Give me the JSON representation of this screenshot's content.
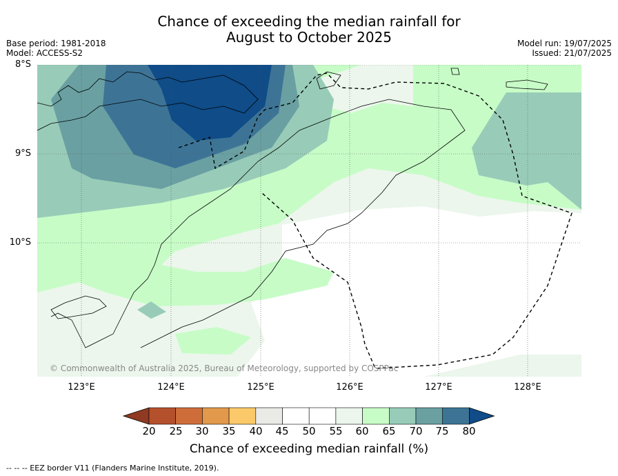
{
  "title_line1": "Chance of exceeding the median rainfall for",
  "title_line2": "August to October 2025",
  "base_period": "Base period: 1981-2018",
  "model": "Model: ACCESS-S2",
  "model_run": "Model run: 19/07/2025",
  "issued": "Issued: 21/07/2025",
  "lat_labels": [
    "8°S",
    "9°S",
    "10°S"
  ],
  "lon_labels": [
    "123°E",
    "124°E",
    "125°E",
    "126°E",
    "127°E",
    "128°E"
  ],
  "copyright": "© Commonwealth of Australia 2025, Bureau of Meteorology, supported by COSPPac",
  "colorbar": {
    "ticks": [
      "20",
      "25",
      "30",
      "35",
      "40",
      "45",
      "50",
      "55",
      "60",
      "65",
      "70",
      "75",
      "80"
    ],
    "colors": [
      "#8f3a21",
      "#b5502c",
      "#cf6d3a",
      "#e2994c",
      "#fcc96a",
      "#eaeae6",
      "#ffffff",
      "#ffffff",
      "#ecf6ec",
      "#c7fcc7",
      "#98ccb8",
      "#6aa0a2",
      "#3d7496",
      "#0f4c88"
    ],
    "label": "Chance of exceeding median rainfall (%)"
  },
  "footnote": "-- -- -- EEZ border V11 (Flanders Marine Institute, 2019).",
  "colors": {
    "white_45_55": "#ffffff",
    "pale_55_60": "#ecf6ec",
    "green_60_65": "#c7fcc7",
    "teal_65_70": "#98ccb8",
    "teal_70_75": "#6aa0a2",
    "blue_75_80": "#3d7496",
    "navy_80": "#0f4c88"
  }
}
